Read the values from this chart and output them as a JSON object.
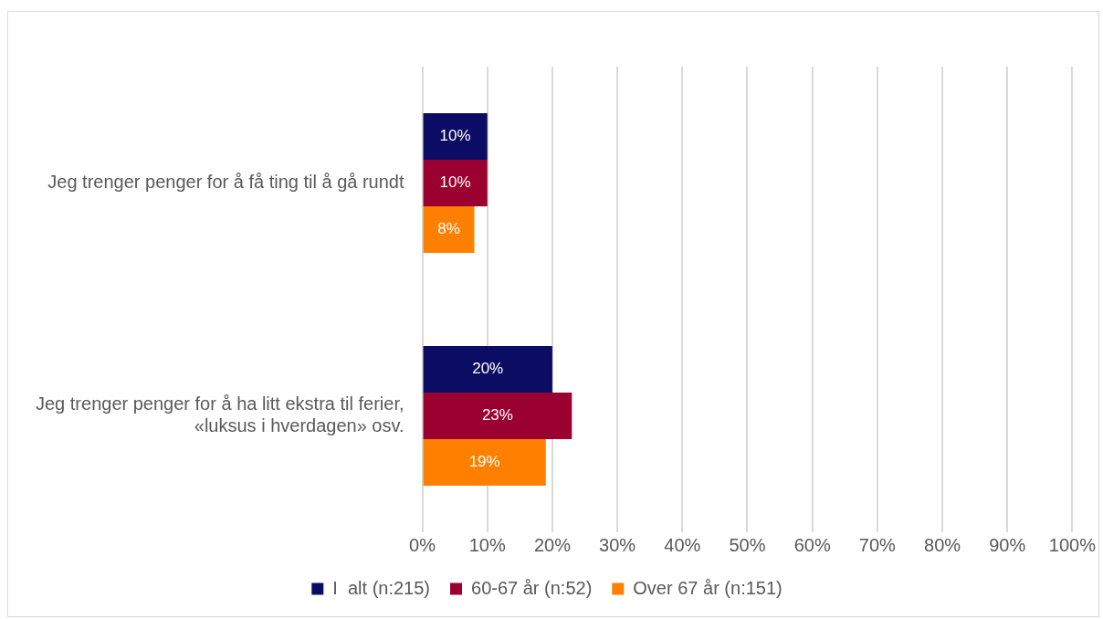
{
  "chart_data": {
    "type": "bar",
    "orientation": "horizontal",
    "categories": [
      "Jeg trenger penger for å få ting til å gå rundt",
      "Jeg trenger penger for å ha litt ekstra til ferier, «luksus i hverdagen» osv."
    ],
    "series": [
      {
        "name": "I  alt (n:215)",
        "color": "#0c0c64",
        "values": [
          10,
          20
        ],
        "value_labels": [
          "10%",
          "20%"
        ]
      },
      {
        "name": "60-67 år (n:52)",
        "color": "#9a0030",
        "values": [
          10,
          23
        ],
        "value_labels": [
          "10%",
          "23%"
        ]
      },
      {
        "name": "Over 67 år (n:151)",
        "color": "#ff8000",
        "values": [
          8,
          19
        ],
        "value_labels": [
          "8%",
          "19%"
        ]
      }
    ],
    "xlim": [
      0,
      100
    ],
    "xticks": [
      {
        "value": 0,
        "label": "0%"
      },
      {
        "value": 10,
        "label": "10%"
      },
      {
        "value": 20,
        "label": "20%"
      },
      {
        "value": 30,
        "label": "30%"
      },
      {
        "value": 40,
        "label": "40%"
      },
      {
        "value": 50,
        "label": "50%"
      },
      {
        "value": 60,
        "label": "60%"
      },
      {
        "value": 70,
        "label": "70%"
      },
      {
        "value": 80,
        "label": "80%"
      },
      {
        "value": 90,
        "label": "90%"
      },
      {
        "value": 100,
        "label": "100%"
      }
    ],
    "grid": "x",
    "legend": "bottom"
  }
}
